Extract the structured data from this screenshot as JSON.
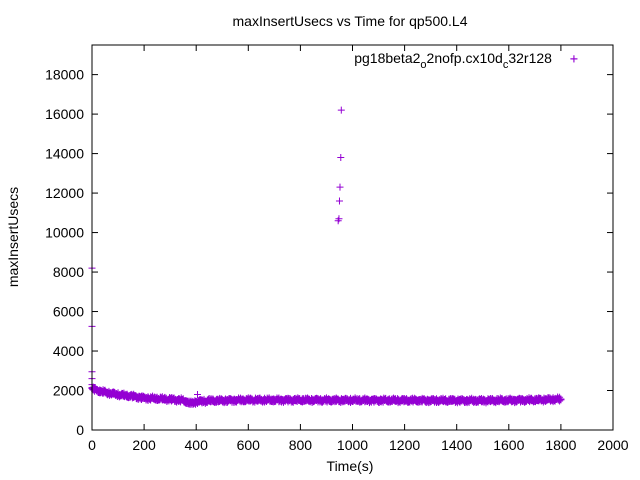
{
  "chart_data": {
    "type": "scatter",
    "title": "maxInsertUsecs vs Time for qp500.L4",
    "xlabel": "Time(s)",
    "ylabel": "maxInsertUsecs",
    "xlim": [
      0,
      2000
    ],
    "ylim": [
      0,
      19500
    ],
    "xticks": [
      0,
      200,
      400,
      600,
      800,
      1000,
      1200,
      1400,
      1600,
      1800,
      2000
    ],
    "yticks": [
      0,
      2000,
      4000,
      6000,
      8000,
      10000,
      12000,
      14000,
      16000,
      18000
    ],
    "xtick_labels": [
      "0",
      "200",
      "400",
      "600",
      "800",
      "1000",
      "1200",
      "1400",
      "1600",
      "1800",
      "2000"
    ],
    "ytick_labels": [
      "0",
      "2000",
      "4000",
      "6000",
      "8000",
      "10000",
      "12000",
      "14000",
      "16000",
      "18000"
    ],
    "grid": false,
    "legend_position": "top-right",
    "marker": "+",
    "series": [
      {
        "legend_parts": [
          "pg18beta2",
          "o",
          "2nofp.cx10d",
          "c",
          "32r128"
        ],
        "color": "#9400d3",
        "points": [
          [
            1850,
            18800
          ],
          [
            0,
            8200
          ],
          [
            0,
            5250
          ],
          [
            0,
            2950
          ],
          [
            0,
            2600
          ],
          [
            0,
            2300
          ],
          [
            10,
            2150
          ],
          [
            20,
            2050
          ],
          [
            30,
            2000
          ],
          [
            40,
            1950
          ],
          [
            60,
            1900
          ],
          [
            80,
            1850
          ],
          [
            100,
            1800
          ],
          [
            120,
            1750
          ],
          [
            140,
            1700
          ],
          [
            160,
            1680
          ],
          [
            180,
            1650
          ],
          [
            200,
            1600
          ],
          [
            250,
            1560
          ],
          [
            300,
            1540
          ],
          [
            340,
            1500
          ],
          [
            360,
            1420
          ],
          [
            380,
            1300
          ],
          [
            395,
            1450
          ],
          [
            405,
            1800
          ],
          [
            420,
            1500
          ],
          [
            450,
            1480
          ],
          [
            500,
            1500
          ],
          [
            550,
            1520
          ],
          [
            600,
            1530
          ],
          [
            650,
            1520
          ],
          [
            700,
            1510
          ],
          [
            750,
            1500
          ],
          [
            800,
            1500
          ],
          [
            850,
            1520
          ],
          [
            900,
            1510
          ],
          [
            945,
            10600
          ],
          [
            948,
            10700
          ],
          [
            950,
            11600
          ],
          [
            952,
            12300
          ],
          [
            955,
            13800
          ],
          [
            957,
            16200
          ],
          [
            960,
            1550
          ],
          [
            1000,
            1520
          ],
          [
            1050,
            1510
          ],
          [
            1100,
            1500
          ],
          [
            1150,
            1490
          ],
          [
            1200,
            1500
          ],
          [
            1250,
            1500
          ],
          [
            1300,
            1490
          ],
          [
            1350,
            1480
          ],
          [
            1400,
            1490
          ],
          [
            1450,
            1500
          ],
          [
            1500,
            1490
          ],
          [
            1550,
            1500
          ],
          [
            1600,
            1500
          ],
          [
            1650,
            1510
          ],
          [
            1700,
            1530
          ],
          [
            1750,
            1550
          ],
          [
            1800,
            1550
          ]
        ],
        "dense_band": {
          "x_start": 0,
          "x_end": 1800,
          "x_step": 2.5,
          "level_profile": [
            [
              0,
              2100
            ],
            [
              20,
              2000
            ],
            [
              60,
              1880
            ],
            [
              100,
              1790
            ],
            [
              160,
              1700
            ],
            [
              200,
              1620
            ],
            [
              300,
              1550
            ],
            [
              350,
              1500
            ],
            [
              380,
              1350
            ],
            [
              400,
              1430
            ],
            [
              450,
              1480
            ],
            [
              600,
              1520
            ],
            [
              900,
              1510
            ],
            [
              1200,
              1500
            ],
            [
              1500,
              1490
            ],
            [
              1700,
              1520
            ],
            [
              1800,
              1560
            ]
          ],
          "spread": 120
        }
      }
    ]
  }
}
